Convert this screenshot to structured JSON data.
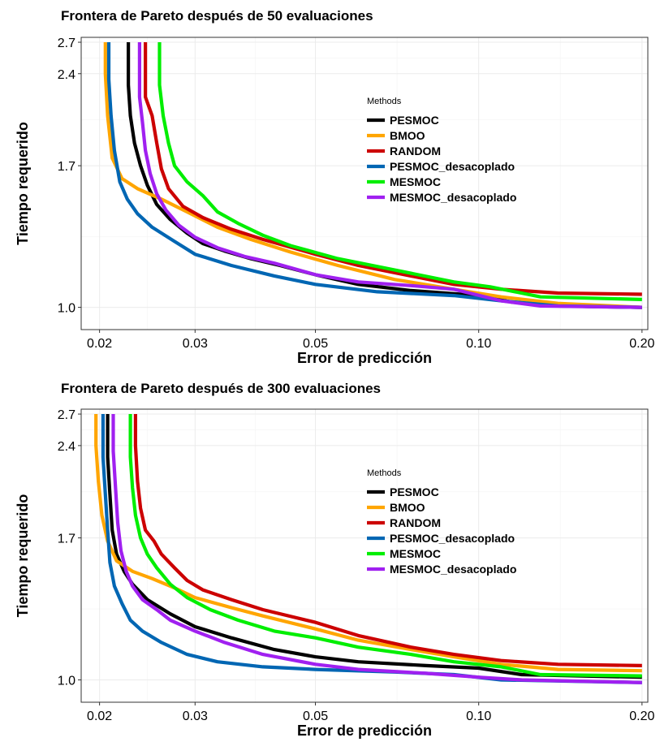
{
  "chart_data": [
    {
      "type": "line",
      "title": "Frontera de Pareto después de 50 evaluaciones",
      "xlabel": "Error de predicción",
      "ylabel": "Tiempo requerido",
      "x_scale": "log",
      "y_scale": "log",
      "xlim": [
        0.0185,
        0.205
      ],
      "ylim": [
        0.92,
        2.75
      ],
      "x_ticks": [
        {
          "value": 0.02,
          "label": "0.02"
        },
        {
          "value": 0.03,
          "label": "0.03"
        },
        {
          "value": 0.05,
          "label": "0.05"
        },
        {
          "value": 0.1,
          "label": "0.10"
        },
        {
          "value": 0.2,
          "label": "0.20"
        }
      ],
      "y_ticks": [
        {
          "value": 1.0,
          "label": "1.0"
        },
        {
          "value": 1.7,
          "label": "1.7"
        },
        {
          "value": 2.4,
          "label": "2.4"
        },
        {
          "value": 2.7,
          "label": "2.7"
        }
      ],
      "grid": true,
      "legend": {
        "title": "Methods",
        "position": "right"
      },
      "series": [
        {
          "name": "PESMOC",
          "color": "#000000",
          "points": [
            [
              0.0226,
              2.7
            ],
            [
              0.0226,
              2.3
            ],
            [
              0.0228,
              2.05
            ],
            [
              0.0232,
              1.85
            ],
            [
              0.0238,
              1.7
            ],
            [
              0.0245,
              1.58
            ],
            [
              0.0255,
              1.47
            ],
            [
              0.027,
              1.39
            ],
            [
              0.029,
              1.32
            ],
            [
              0.031,
              1.27
            ],
            [
              0.034,
              1.235
            ],
            [
              0.038,
              1.2
            ],
            [
              0.043,
              1.17
            ],
            [
              0.05,
              1.13
            ],
            [
              0.06,
              1.09
            ],
            [
              0.075,
              1.065
            ],
            [
              0.1,
              1.045
            ],
            [
              0.115,
              1.02
            ],
            [
              0.14,
              1.005
            ],
            [
              0.2,
              1.0
            ]
          ]
        },
        {
          "name": "BMOO",
          "color": "#FFA500",
          "points": [
            [
              0.0205,
              2.7
            ],
            [
              0.0205,
              2.4
            ],
            [
              0.0207,
              2.05
            ],
            [
              0.0211,
              1.75
            ],
            [
              0.022,
              1.62
            ],
            [
              0.0235,
              1.56
            ],
            [
              0.026,
              1.5
            ],
            [
              0.029,
              1.43
            ],
            [
              0.033,
              1.35
            ],
            [
              0.038,
              1.29
            ],
            [
              0.045,
              1.23
            ],
            [
              0.055,
              1.17
            ],
            [
              0.07,
              1.11
            ],
            [
              0.09,
              1.07
            ],
            [
              0.11,
              1.04
            ],
            [
              0.14,
              1.015
            ],
            [
              0.2,
              1.0
            ]
          ]
        },
        {
          "name": "RANDOM",
          "color": "#CC0000",
          "points": [
            [
              0.0243,
              2.7
            ],
            [
              0.0243,
              2.2
            ],
            [
              0.025,
              2.05
            ],
            [
              0.0255,
              1.85
            ],
            [
              0.026,
              1.68
            ],
            [
              0.0268,
              1.56
            ],
            [
              0.0285,
              1.46
            ],
            [
              0.031,
              1.4
            ],
            [
              0.035,
              1.34
            ],
            [
              0.04,
              1.29
            ],
            [
              0.05,
              1.22
            ],
            [
              0.06,
              1.17
            ],
            [
              0.075,
              1.125
            ],
            [
              0.09,
              1.09
            ],
            [
              0.11,
              1.07
            ],
            [
              0.14,
              1.055
            ],
            [
              0.2,
              1.05
            ]
          ]
        },
        {
          "name": "PESMOC_desacoplado",
          "color": "#0066B3",
          "points": [
            [
              0.0208,
              2.7
            ],
            [
              0.0208,
              2.35
            ],
            [
              0.021,
              2.05
            ],
            [
              0.0213,
              1.8
            ],
            [
              0.0218,
              1.6
            ],
            [
              0.0225,
              1.5
            ],
            [
              0.0235,
              1.42
            ],
            [
              0.025,
              1.35
            ],
            [
              0.0275,
              1.28
            ],
            [
              0.03,
              1.22
            ],
            [
              0.035,
              1.17
            ],
            [
              0.042,
              1.125
            ],
            [
              0.05,
              1.09
            ],
            [
              0.065,
              1.06
            ],
            [
              0.09,
              1.045
            ],
            [
              0.11,
              1.025
            ],
            [
              0.14,
              1.005
            ],
            [
              0.2,
              1.0
            ]
          ]
        },
        {
          "name": "MESMOC",
          "color": "#00EE00",
          "points": [
            [
              0.0258,
              2.7
            ],
            [
              0.0258,
              2.3
            ],
            [
              0.0262,
              2.05
            ],
            [
              0.0268,
              1.85
            ],
            [
              0.0275,
              1.7
            ],
            [
              0.029,
              1.6
            ],
            [
              0.031,
              1.52
            ],
            [
              0.033,
              1.43
            ],
            [
              0.036,
              1.37
            ],
            [
              0.04,
              1.31
            ],
            [
              0.045,
              1.26
            ],
            [
              0.055,
              1.2
            ],
            [
              0.07,
              1.15
            ],
            [
              0.09,
              1.1
            ],
            [
              0.105,
              1.08
            ],
            [
              0.13,
              1.04
            ],
            [
              0.2,
              1.03
            ]
          ]
        },
        {
          "name": "MESMOC_desacoplado",
          "color": "#A020F0",
          "points": [
            [
              0.0237,
              2.7
            ],
            [
              0.0237,
              2.2
            ],
            [
              0.024,
              2.0
            ],
            [
              0.0243,
              1.8
            ],
            [
              0.0248,
              1.65
            ],
            [
              0.0255,
              1.53
            ],
            [
              0.0265,
              1.44
            ],
            [
              0.028,
              1.36
            ],
            [
              0.03,
              1.3
            ],
            [
              0.033,
              1.25
            ],
            [
              0.037,
              1.21
            ],
            [
              0.042,
              1.18
            ],
            [
              0.05,
              1.13
            ],
            [
              0.06,
              1.1
            ],
            [
              0.075,
              1.085
            ],
            [
              0.09,
              1.07
            ],
            [
              0.11,
              1.025
            ],
            [
              0.13,
              1.005
            ],
            [
              0.2,
              1.0
            ]
          ]
        }
      ]
    },
    {
      "type": "line",
      "title": "Frontera de Pareto después de 300 evaluaciones",
      "xlabel": "Error de predicción",
      "ylabel": "Tiempo requerido",
      "x_scale": "log",
      "y_scale": "log",
      "xlim": [
        0.0185,
        0.205
      ],
      "ylim": [
        0.92,
        2.75
      ],
      "x_ticks": [
        {
          "value": 0.02,
          "label": "0.02"
        },
        {
          "value": 0.03,
          "label": "0.03"
        },
        {
          "value": 0.05,
          "label": "0.05"
        },
        {
          "value": 0.1,
          "label": "0.10"
        },
        {
          "value": 0.2,
          "label": "0.20"
        }
      ],
      "y_ticks": [
        {
          "value": 1.0,
          "label": "1.0"
        },
        {
          "value": 1.7,
          "label": "1.7"
        },
        {
          "value": 2.4,
          "label": "2.4"
        },
        {
          "value": 2.7,
          "label": "2.7"
        }
      ],
      "grid": true,
      "legend": {
        "title": "Methods",
        "position": "right"
      },
      "series": [
        {
          "name": "PESMOC",
          "color": "#000000",
          "points": [
            [
              0.0207,
              2.7
            ],
            [
              0.0207,
              2.3
            ],
            [
              0.0209,
              2.0
            ],
            [
              0.0211,
              1.75
            ],
            [
              0.0215,
              1.6
            ],
            [
              0.0222,
              1.5
            ],
            [
              0.023,
              1.43
            ],
            [
              0.0245,
              1.35
            ],
            [
              0.027,
              1.28
            ],
            [
              0.03,
              1.22
            ],
            [
              0.035,
              1.17
            ],
            [
              0.042,
              1.12
            ],
            [
              0.05,
              1.09
            ],
            [
              0.06,
              1.07
            ],
            [
              0.08,
              1.055
            ],
            [
              0.1,
              1.045
            ],
            [
              0.12,
              1.02
            ],
            [
              0.2,
              1.01
            ]
          ]
        },
        {
          "name": "BMOO",
          "color": "#FFA500",
          "points": [
            [
              0.0197,
              2.7
            ],
            [
              0.0197,
              2.4
            ],
            [
              0.0199,
              2.1
            ],
            [
              0.0202,
              1.85
            ],
            [
              0.0207,
              1.68
            ],
            [
              0.0215,
              1.56
            ],
            [
              0.023,
              1.5
            ],
            [
              0.025,
              1.46
            ],
            [
              0.0275,
              1.41
            ],
            [
              0.03,
              1.36
            ],
            [
              0.035,
              1.31
            ],
            [
              0.04,
              1.27
            ],
            [
              0.05,
              1.21
            ],
            [
              0.06,
              1.16
            ],
            [
              0.075,
              1.12
            ],
            [
              0.09,
              1.09
            ],
            [
              0.11,
              1.06
            ],
            [
              0.14,
              1.04
            ],
            [
              0.2,
              1.035
            ]
          ]
        },
        {
          "name": "RANDOM",
          "color": "#CC0000",
          "points": [
            [
              0.0233,
              2.7
            ],
            [
              0.0233,
              2.4
            ],
            [
              0.0235,
              2.1
            ],
            [
              0.0238,
              1.9
            ],
            [
              0.0243,
              1.75
            ],
            [
              0.0252,
              1.68
            ],
            [
              0.026,
              1.6
            ],
            [
              0.0275,
              1.52
            ],
            [
              0.029,
              1.45
            ],
            [
              0.031,
              1.4
            ],
            [
              0.035,
              1.35
            ],
            [
              0.04,
              1.3
            ],
            [
              0.05,
              1.24
            ],
            [
              0.06,
              1.18
            ],
            [
              0.075,
              1.13
            ],
            [
              0.09,
              1.1
            ],
            [
              0.11,
              1.075
            ],
            [
              0.14,
              1.06
            ],
            [
              0.2,
              1.055
            ]
          ]
        },
        {
          "name": "PESMOC_desacoplado",
          "color": "#0066B3",
          "points": [
            [
              0.0203,
              2.7
            ],
            [
              0.0203,
              2.3
            ],
            [
              0.0205,
              2.0
            ],
            [
              0.0207,
              1.75
            ],
            [
              0.0209,
              1.55
            ],
            [
              0.0213,
              1.42
            ],
            [
              0.022,
              1.33
            ],
            [
              0.0228,
              1.25
            ],
            [
              0.024,
              1.2
            ],
            [
              0.026,
              1.15
            ],
            [
              0.029,
              1.1
            ],
            [
              0.033,
              1.07
            ],
            [
              0.04,
              1.05
            ],
            [
              0.05,
              1.04
            ],
            [
              0.07,
              1.03
            ],
            [
              0.09,
              1.02
            ],
            [
              0.11,
              1.0
            ],
            [
              0.2,
              0.99
            ]
          ]
        },
        {
          "name": "MESMOC",
          "color": "#00EE00",
          "points": [
            [
              0.0228,
              2.7
            ],
            [
              0.0228,
              2.3
            ],
            [
              0.023,
              2.05
            ],
            [
              0.0233,
              1.85
            ],
            [
              0.0238,
              1.7
            ],
            [
              0.0245,
              1.6
            ],
            [
              0.0255,
              1.52
            ],
            [
              0.027,
              1.43
            ],
            [
              0.029,
              1.36
            ],
            [
              0.032,
              1.3
            ],
            [
              0.036,
              1.25
            ],
            [
              0.042,
              1.2
            ],
            [
              0.05,
              1.17
            ],
            [
              0.06,
              1.13
            ],
            [
              0.075,
              1.1
            ],
            [
              0.09,
              1.07
            ],
            [
              0.11,
              1.05
            ],
            [
              0.13,
              1.02
            ],
            [
              0.2,
              1.015
            ]
          ]
        },
        {
          "name": "MESMOC_desacoplado",
          "color": "#A020F0",
          "points": [
            [
              0.0212,
              2.7
            ],
            [
              0.0212,
              2.35
            ],
            [
              0.0214,
              2.05
            ],
            [
              0.0216,
              1.8
            ],
            [
              0.0219,
              1.62
            ],
            [
              0.0224,
              1.5
            ],
            [
              0.023,
              1.42
            ],
            [
              0.024,
              1.35
            ],
            [
              0.0255,
              1.3
            ],
            [
              0.027,
              1.25
            ],
            [
              0.03,
              1.2
            ],
            [
              0.034,
              1.15
            ],
            [
              0.04,
              1.1
            ],
            [
              0.05,
              1.06
            ],
            [
              0.06,
              1.04
            ],
            [
              0.08,
              1.025
            ],
            [
              0.1,
              1.01
            ],
            [
              0.12,
              1.0
            ],
            [
              0.2,
              0.99
            ]
          ]
        }
      ]
    }
  ]
}
